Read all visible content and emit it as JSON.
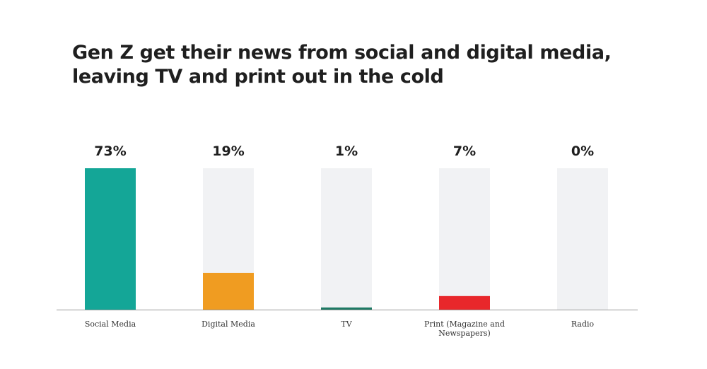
{
  "chart_data": {
    "type": "bar",
    "title_lines": [
      "Gen Z get their news from social and digital media,",
      "leaving TV and print out in the cold"
    ],
    "categories": [
      "Social Media",
      "Digital Media",
      "TV",
      "Print (Magazine and Newspapers)",
      "Radio"
    ],
    "category_lines": [
      [
        "Social Media"
      ],
      [
        "Digital Media"
      ],
      [
        "TV"
      ],
      [
        "Print (Magazine and",
        "Newspapers)"
      ],
      [
        "Radio"
      ]
    ],
    "values": [
      73,
      19,
      1,
      7,
      0
    ],
    "value_labels": [
      "73%",
      "19%",
      "1%",
      "7%",
      "0%"
    ],
    "bar_colors": [
      "#14a697",
      "#f09c21",
      "#1e7a64",
      "#e8272b",
      "#d9dadd"
    ],
    "track_color": "#f1f2f4",
    "axis_color": "#999999",
    "ylim": [
      0,
      73
    ],
    "grid": false,
    "legend": "none"
  }
}
